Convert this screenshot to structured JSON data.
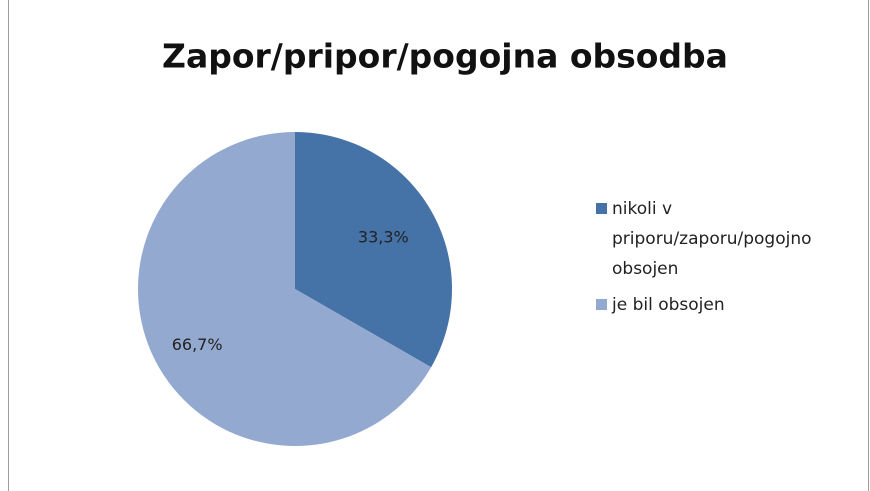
{
  "chart_data": {
    "type": "pie",
    "title": "Zapor/pripor/pogojna obsodba",
    "categories": [
      "nikoli v priporu/zaporu/pogojno obsojen",
      "je bil obsojen"
    ],
    "values": [
      33.3,
      66.7
    ],
    "value_labels": [
      "33,3%",
      "66,7%"
    ],
    "colors": [
      "#4572a7",
      "#93a9cf"
    ],
    "legend": "right"
  }
}
